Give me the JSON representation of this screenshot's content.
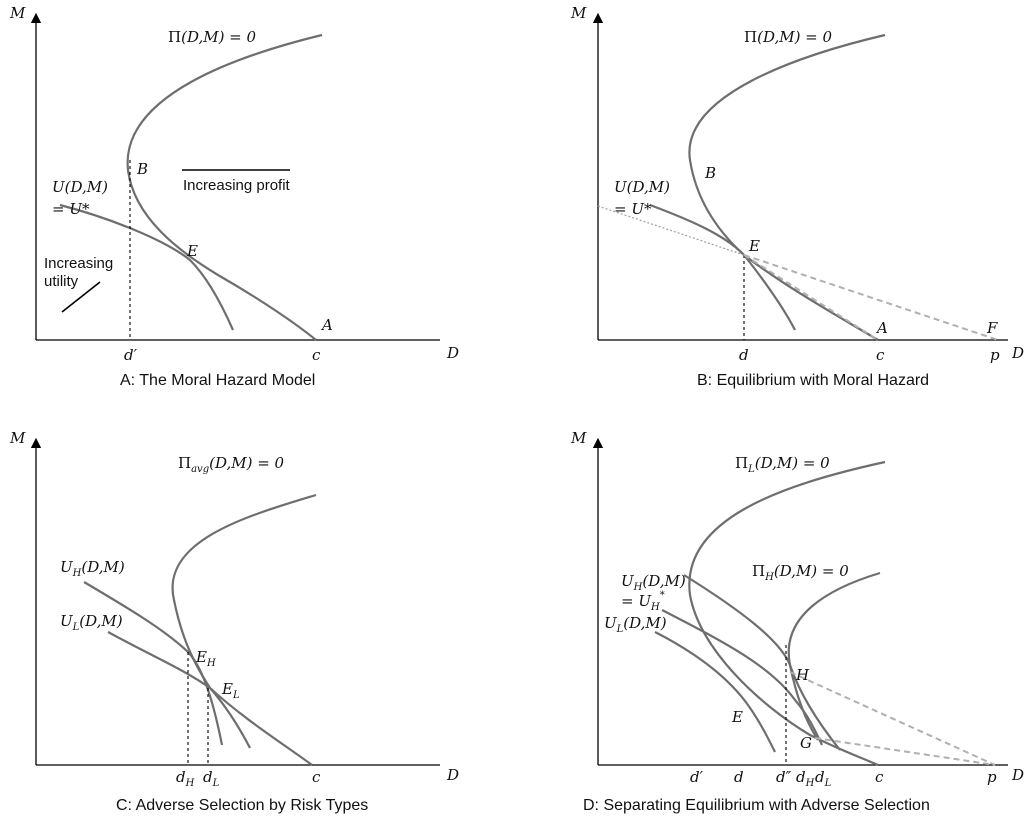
{
  "panels": {
    "A": {
      "caption": "A: The Moral Hazard Model",
      "y_axis": "M",
      "x_axis": "D",
      "profit_curve_pi": "Π",
      "profit_curve_rest": "(D,M) = 0",
      "utility_label_1": "U(D,M)",
      "utility_label_2": "= U*",
      "point_B": "B",
      "point_E": "E",
      "point_A": "A",
      "tick_d": "d′",
      "tick_c": "c",
      "note_profit": "Increasing profit",
      "note_utility_1": "Increasing",
      "note_utility_2": "utility"
    },
    "B": {
      "caption": "B: Equilibrium with Moral Hazard",
      "y_axis": "M",
      "x_axis": "D",
      "profit_curve_pi": "Π",
      "profit_curve_rest": "(D,M) = 0",
      "utility_label_1": "U(D,M)",
      "utility_label_2": "= U*",
      "point_B": "B",
      "point_E": "E",
      "point_A": "A",
      "point_F": "F",
      "tick_d": "d",
      "tick_c": "c",
      "tick_p": "p"
    },
    "C": {
      "caption": "C: Adverse Selection by Risk Types",
      "y_axis": "M",
      "x_axis": "D",
      "profit_curve_pi": "Π",
      "profit_curve_sub": "avg",
      "profit_curve_rest": "(D,M) = 0",
      "uh_label": "U",
      "uh_sub": "H",
      "uh_rest": "(D,M)",
      "ul_label": "U",
      "ul_sub": "L",
      "ul_rest": "(D,M)",
      "point_EH": "E",
      "point_EH_sub": "H",
      "point_EL": "E",
      "point_EL_sub": "L",
      "tick_dH": "d",
      "tick_dH_sub": "H",
      "tick_dL": "d",
      "tick_dL_sub": "L",
      "tick_c": "c"
    },
    "D": {
      "caption": "D: Separating Equilibrium with Adverse Selection",
      "y_axis": "M",
      "x_axis": "D",
      "pil_label": "Π",
      "pil_sub": "L",
      "pil_rest": "(D,M) = 0",
      "pih_label": "Π",
      "pih_sub": "H",
      "pih_rest": "(D,M) = 0",
      "uh_label": "U",
      "uh_sub": "H",
      "uh_rest": "(D,M)",
      "uh_eq": "= U",
      "uh_eq_sub": "H",
      "uh_eq_sup": "*",
      "ul_label": "U",
      "ul_sub": "L",
      "ul_rest": "(D,M)",
      "point_E": "E",
      "point_H": "H",
      "point_G": "G",
      "tick_d1": "d′",
      "tick_d": "d",
      "tick_d2": "d″",
      "tick_dH": "d",
      "tick_dH_sub": "H",
      "tick_dL": "d",
      "tick_dL_sub": "L",
      "tick_c": "c",
      "tick_p": "p"
    }
  }
}
